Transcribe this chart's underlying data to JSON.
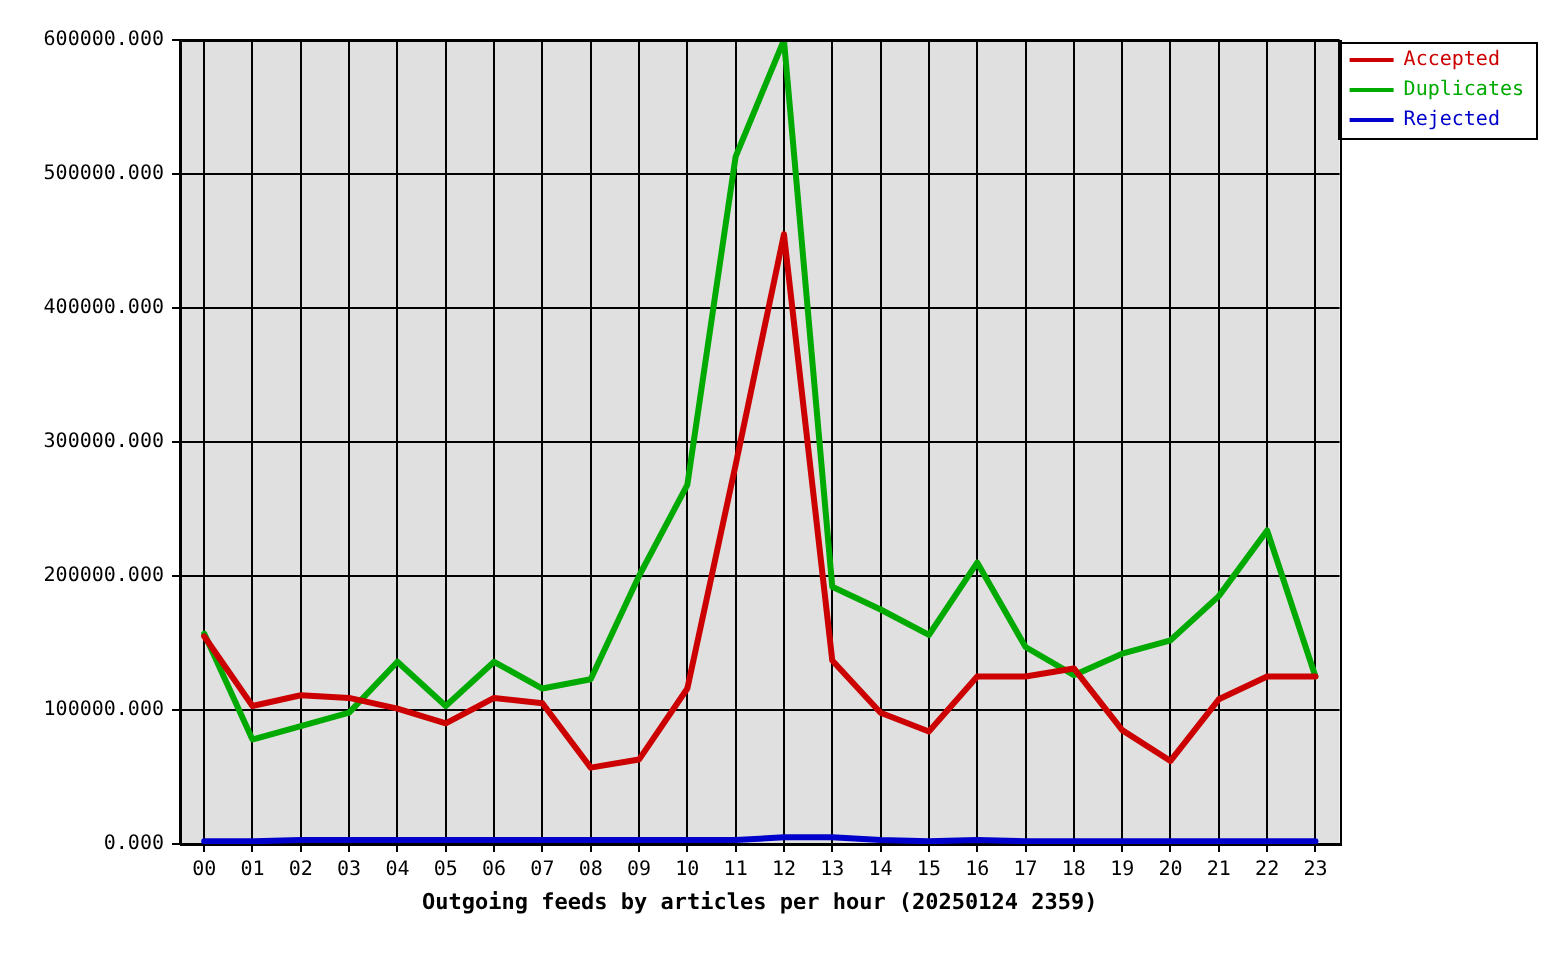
{
  "chart_data": {
    "type": "line",
    "xlabel": "Outgoing feeds by articles per hour (20250124 2359)",
    "categories": [
      "00",
      "01",
      "02",
      "03",
      "04",
      "05",
      "06",
      "07",
      "08",
      "09",
      "10",
      "11",
      "12",
      "13",
      "14",
      "15",
      "16",
      "17",
      "18",
      "19",
      "20",
      "21",
      "22",
      "23"
    ],
    "series": [
      {
        "name": "Accepted",
        "color": "#cc0000",
        "values": [
          155000,
          103000,
          111000,
          109000,
          101000,
          90000,
          109000,
          105000,
          57000,
          63000,
          116000,
          283000,
          455000,
          137000,
          98000,
          84000,
          125000,
          125000,
          131000,
          85000,
          62000,
          108000,
          125000,
          125000
        ]
      },
      {
        "name": "Duplicates",
        "color": "#00aa00",
        "values": [
          157000,
          78000,
          88000,
          98000,
          136000,
          103000,
          136000,
          116000,
          123000,
          200000,
          268000,
          513000,
          600000,
          192000,
          175000,
          156000,
          210000,
          147000,
          126000,
          142000,
          152000,
          185000,
          234000,
          125000
        ]
      },
      {
        "name": "Rejected",
        "color": "#0000cc",
        "values": [
          2000,
          2000,
          3000,
          3000,
          3000,
          3000,
          3000,
          3000,
          3000,
          3000,
          3000,
          3000,
          5000,
          5000,
          3000,
          2000,
          3000,
          2000,
          2000,
          2000,
          2000,
          2000,
          2000,
          2000
        ]
      }
    ],
    "ylim": [
      0,
      600000
    ],
    "yticks": [
      {
        "value": 0,
        "label": "0.000"
      },
      {
        "value": 100000,
        "label": "100000.000"
      },
      {
        "value": 200000,
        "label": "200000.000"
      },
      {
        "value": 300000,
        "label": "300000.000"
      },
      {
        "value": 400000,
        "label": "400000.000"
      },
      {
        "value": 500000,
        "label": "500000.000"
      },
      {
        "value": 600000,
        "label": "600000.000"
      }
    ],
    "grid": true,
    "legend": "top right"
  }
}
